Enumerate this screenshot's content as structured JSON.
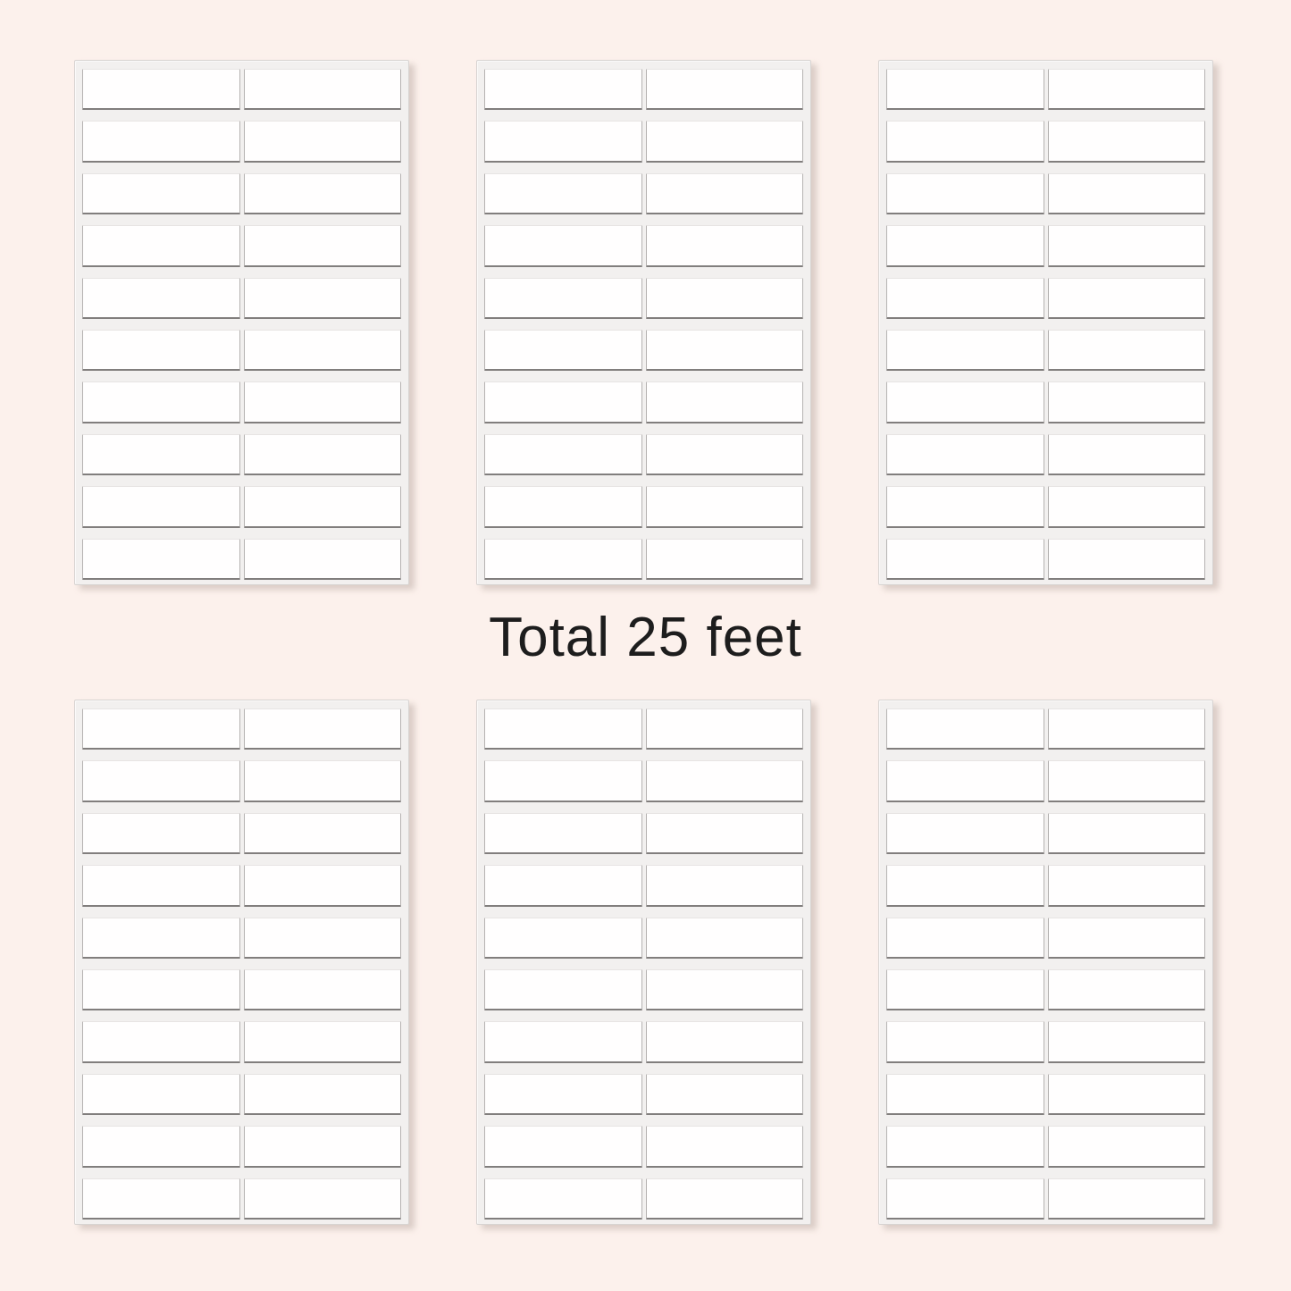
{
  "page": {
    "background_color": "#fcf1ec"
  },
  "caption": {
    "text": "Total 25 feet",
    "color": "#1d1d1d"
  },
  "label_sheets": {
    "sheet_count": 6,
    "arrangement": {
      "rows_of_sheets": 2,
      "sheets_per_row": 3
    },
    "rows_per_sheet": 10,
    "columns_per_sheet": 2,
    "labels_per_sheet": 20,
    "total_labels": 120,
    "sheet_color": "#f2f0ef",
    "sheet_edge_color": "#d8d4d2",
    "label_color": "#fffefe",
    "label_border_color": "#b5b2b1",
    "label_bottom_border_color": "#817e7d"
  }
}
